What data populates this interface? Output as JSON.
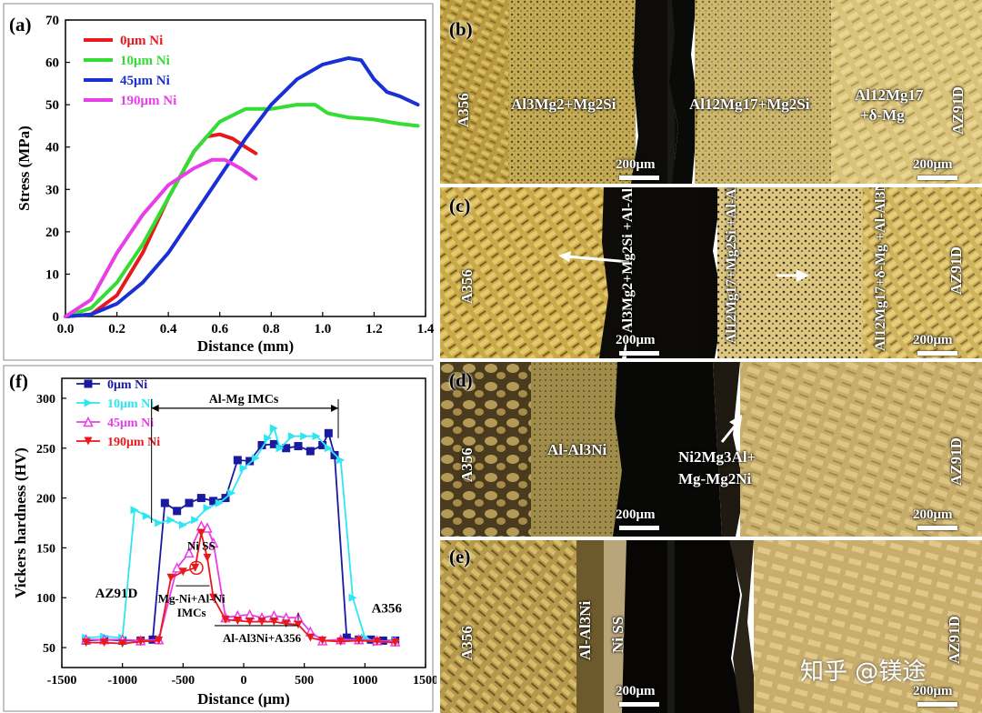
{
  "colors": {
    "red": "#e8191d",
    "green": "#33dd33",
    "blue": "#1a2fd4",
    "magenta": "#e83ee8",
    "cyan": "#2ee6f2",
    "navy": "#1a1aa0"
  },
  "chart_data": [
    {
      "panel": "(a)",
      "type": "line",
      "xlabel": "Distance (mm)",
      "ylabel": "Stress (MPa)",
      "xlim": [
        0,
        1.4
      ],
      "ylim": [
        0,
        70
      ],
      "xticks": [
        "0.0",
        "0.2",
        "0.4",
        "0.6",
        "0.8",
        "1.0",
        "1.2",
        "1.4"
      ],
      "yticks": [
        "0",
        "10",
        "20",
        "30",
        "40",
        "50",
        "60",
        "70"
      ],
      "legend": "top-left",
      "series": [
        {
          "name": "0μm Ni",
          "color": "#e8191d",
          "points": [
            [
              0,
              0
            ],
            [
              0.1,
              0.5
            ],
            [
              0.2,
              5
            ],
            [
              0.3,
              15
            ],
            [
              0.4,
              28
            ],
            [
              0.5,
              39
            ],
            [
              0.55,
              42.5
            ],
            [
              0.6,
              43
            ],
            [
              0.65,
              42
            ],
            [
              0.7,
              40
            ],
            [
              0.74,
              38.5
            ]
          ]
        },
        {
          "name": "10μm Ni",
          "color": "#33dd33",
          "points": [
            [
              0,
              0
            ],
            [
              0.1,
              2
            ],
            [
              0.2,
              8
            ],
            [
              0.3,
              17
            ],
            [
              0.4,
              28
            ],
            [
              0.5,
              39
            ],
            [
              0.6,
              46
            ],
            [
              0.7,
              49
            ],
            [
              0.8,
              49
            ],
            [
              0.9,
              50
            ],
            [
              0.97,
              50
            ],
            [
              1.02,
              48
            ],
            [
              1.1,
              47
            ],
            [
              1.2,
              46.5
            ],
            [
              1.3,
              45.5
            ],
            [
              1.37,
              45
            ]
          ]
        },
        {
          "name": "45μm Ni",
          "color": "#1a2fd4",
          "points": [
            [
              0,
              0
            ],
            [
              0.1,
              0.5
            ],
            [
              0.2,
              3
            ],
            [
              0.3,
              8
            ],
            [
              0.4,
              15
            ],
            [
              0.5,
              24
            ],
            [
              0.6,
              33
            ],
            [
              0.7,
              42
            ],
            [
              0.8,
              50
            ],
            [
              0.9,
              56
            ],
            [
              1.0,
              59.5
            ],
            [
              1.1,
              61
            ],
            [
              1.15,
              60.5
            ],
            [
              1.2,
              56
            ],
            [
              1.25,
              53
            ],
            [
              1.3,
              52
            ],
            [
              1.37,
              50
            ]
          ]
        },
        {
          "name": "190μm Ni",
          "color": "#e83ee8",
          "points": [
            [
              0,
              0
            ],
            [
              0.1,
              4
            ],
            [
              0.2,
              15
            ],
            [
              0.3,
              24
            ],
            [
              0.4,
              31
            ],
            [
              0.5,
              35
            ],
            [
              0.57,
              37
            ],
            [
              0.62,
              37
            ],
            [
              0.68,
              35
            ],
            [
              0.74,
              32.5
            ]
          ]
        }
      ]
    },
    {
      "panel": "(f)",
      "type": "line",
      "xlabel": "Distance (μm)",
      "ylabel": "Vickers hardness (HV)",
      "xlim": [
        -1500,
        1500
      ],
      "ylim": [
        30,
        320
      ],
      "xticks": [
        "-1500",
        "-1000",
        "-500",
        "0",
        "500",
        "1000",
        "1500"
      ],
      "yticks": [
        "50",
        "100",
        "150",
        "200",
        "250",
        "300"
      ],
      "legend": "top-left",
      "series": [
        {
          "name": "0μm Ni",
          "color": "#1a1aa0",
          "marker": "square",
          "points": [
            [
              -1300,
              57
            ],
            [
              -1150,
              58
            ],
            [
              -1000,
              57
            ],
            [
              -850,
              57
            ],
            [
              -750,
              58
            ],
            [
              -650,
              195
            ],
            [
              -550,
              187
            ],
            [
              -450,
              195
            ],
            [
              -350,
              200
            ],
            [
              -250,
              197
            ],
            [
              -150,
              200
            ],
            [
              -50,
              238
            ],
            [
              50,
              237
            ],
            [
              150,
              253
            ],
            [
              250,
              254
            ],
            [
              350,
              250
            ],
            [
              450,
              252
            ],
            [
              550,
              247
            ],
            [
              650,
              253
            ],
            [
              700,
              265
            ],
            [
              750,
              243
            ],
            [
              850,
              60
            ],
            [
              950,
              58
            ],
            [
              1050,
              58
            ],
            [
              1150,
              57
            ],
            [
              1250,
              57
            ]
          ]
        },
        {
          "name": "10μm Ni",
          "color": "#2ee6f2",
          "marker": "triangle-right",
          "points": [
            [
              -1300,
              60
            ],
            [
              -1150,
              61
            ],
            [
              -1000,
              60
            ],
            [
              -900,
              188
            ],
            [
              -800,
              182
            ],
            [
              -700,
              175
            ],
            [
              -600,
              178
            ],
            [
              -500,
              173
            ],
            [
              -400,
              178
            ],
            [
              -300,
              190
            ],
            [
              -200,
              195
            ],
            [
              -100,
              205
            ],
            [
              0,
              230
            ],
            [
              100,
              240
            ],
            [
              200,
              260
            ],
            [
              250,
              270
            ],
            [
              300,
              250
            ],
            [
              400,
              262
            ],
            [
              500,
              262
            ],
            [
              600,
              262
            ],
            [
              700,
              250
            ],
            [
              800,
              238
            ],
            [
              900,
              100
            ],
            [
              1000,
              60
            ],
            [
              1100,
              55
            ],
            [
              1250,
              57
            ]
          ]
        },
        {
          "name": "45μm Ni",
          "color": "#e83ee8",
          "marker": "triangle-up",
          "points": [
            [
              -1300,
              58
            ],
            [
              -1150,
              58
            ],
            [
              -1000,
              58
            ],
            [
              -850,
              57
            ],
            [
              -700,
              58
            ],
            [
              -550,
              130
            ],
            [
              -450,
              145
            ],
            [
              -350,
              172
            ],
            [
              -300,
              170
            ],
            [
              -250,
              155
            ],
            [
              -150,
              80
            ],
            [
              -50,
              82
            ],
            [
              50,
              83
            ],
            [
              150,
              80
            ],
            [
              250,
              82
            ],
            [
              350,
              80
            ],
            [
              450,
              80
            ],
            [
              550,
              66
            ],
            [
              650,
              57
            ],
            [
              800,
              58
            ],
            [
              950,
              58
            ],
            [
              1100,
              57
            ],
            [
              1250,
              56
            ]
          ]
        },
        {
          "name": "190μm Ni",
          "color": "#e8191d",
          "marker": "triangle-down",
          "points": [
            [
              -1300,
              55
            ],
            [
              -1150,
              55
            ],
            [
              -1000,
              54
            ],
            [
              -850,
              56
            ],
            [
              -700,
              57
            ],
            [
              -600,
              120
            ],
            [
              -500,
              126
            ],
            [
              -400,
              130
            ],
            [
              -350,
              165
            ],
            [
              -300,
              140
            ],
            [
              -250,
              100
            ],
            [
              -150,
              78
            ],
            [
              -50,
              77
            ],
            [
              50,
              76
            ],
            [
              150,
              76
            ],
            [
              250,
              76
            ],
            [
              350,
              74
            ],
            [
              450,
              73
            ],
            [
              550,
              60
            ],
            [
              650,
              57
            ],
            [
              800,
              56
            ],
            [
              950,
              57
            ],
            [
              1100,
              56
            ],
            [
              1250,
              55
            ]
          ]
        }
      ],
      "annotations": [
        "Al-Mg IMCs",
        "Ni SS",
        "Mg-Ni+Al-Ni IMCs",
        "Al-Al3Ni+A356",
        "AZ91D",
        "A356"
      ]
    }
  ],
  "micrographs": {
    "b": {
      "label": "(b)",
      "left_side": "A356",
      "left_phase": "Al3Mg2+Mg2Si",
      "mid_phase": "Al12Mg17+Mg2Si",
      "right_phase_1": "Al12Mg17",
      "right_phase_2": "+δ-Mg",
      "right_side": "AZ91D",
      "scale": "200μm",
      "scale2": "200μm"
    },
    "c": {
      "label": "(c)",
      "left_side": "A356",
      "phase1": "Al3Mg2+Mg2Si +Al-Al3Ni",
      "phase2": "Al12Mg17+Mg2Si +Al-Al3Ni",
      "phase3": "Al12Mg17+δ-Mg +Al-Al3Ni",
      "right_side": "AZ91D",
      "scale": "200μm",
      "scale2": "200μm"
    },
    "d": {
      "label": "(d)",
      "left_side": "A356",
      "phase1": "Al-Al3Ni",
      "phase2a": "Ni2Mg3Al+",
      "phase2b": "Mg-Mg2Ni",
      "right_side": "AZ91D",
      "scale": "200μm",
      "scale2": "200μm"
    },
    "e": {
      "label": "(e)",
      "left_side": "A356",
      "phase1": "Al-Al3Ni",
      "phase2": "Ni SS",
      "right_side": "AZ91D",
      "scale": "200μm",
      "scale2": "200μm"
    }
  },
  "watermark": "知乎 @镁途"
}
